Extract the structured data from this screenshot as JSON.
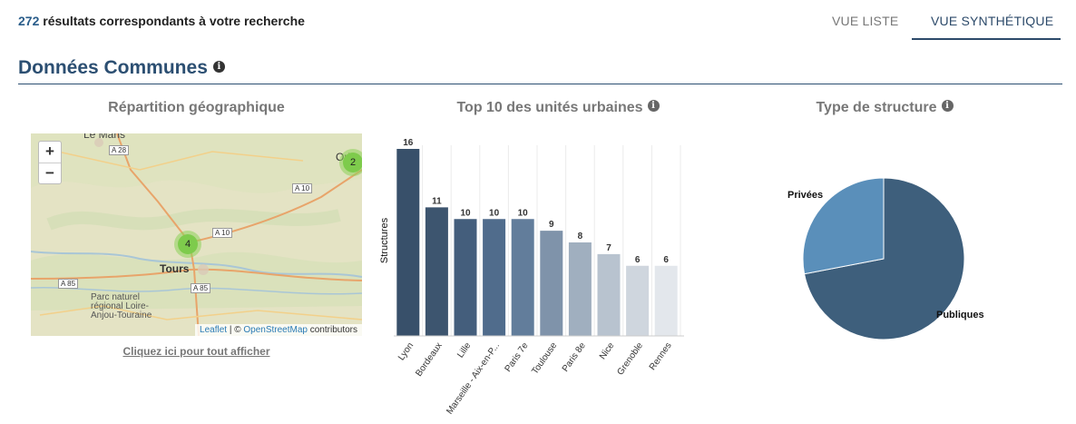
{
  "header": {
    "result_count": "272",
    "result_text": " résultats correspondants à votre recherche",
    "tabs": [
      {
        "label": "VUE LISTE",
        "active": false
      },
      {
        "label": "VUE SYNTHÉTIQUE",
        "active": true
      }
    ]
  },
  "section": {
    "title": "Données Communes"
  },
  "map_panel": {
    "title": "Répartition géographique",
    "zoom_in": "+",
    "zoom_out": "−",
    "labels": {
      "city_top": "Le Mans",
      "city_main": "Tours",
      "city_right": "Orl",
      "park": [
        "Parc naturel",
        "régional Loire-",
        "Anjou-Touraine"
      ],
      "roads": [
        "A 28",
        "A 10",
        "A 10",
        "A 85",
        "A 85"
      ]
    },
    "clusters": [
      {
        "count": "4"
      },
      {
        "count": "2"
      }
    ],
    "attribution": {
      "leaflet": "Leaflet",
      "sep": " | © ",
      "osm": "OpenStreetMap",
      "suffix": " contributors"
    },
    "show_all": "Cliquez ici pour tout afficher"
  },
  "chart_data": {
    "type": "bar",
    "title": "Top 10 des unités urbaines",
    "ylabel": "Structures",
    "categories": [
      "Lyon",
      "Bordeaux",
      "Lille",
      "Marseille - Aix-en-P...",
      "Paris 7e",
      "Toulouse",
      "Paris 8e",
      "Nice",
      "Grenoble",
      "Rennes"
    ],
    "values": [
      16,
      11,
      10,
      10,
      10,
      9,
      8,
      7,
      6,
      6
    ],
    "colors": [
      "#38506a",
      "#3d556f",
      "#445e7c",
      "#506c8c",
      "#627d9b",
      "#7f93aa",
      "#a0afbf",
      "#b8c3cf",
      "#cfd6de",
      "#e3e7ec"
    ],
    "ylim": [
      0,
      16
    ]
  },
  "pie_panel": {
    "title": "Type de structure",
    "slices": [
      {
        "label": "Publiques",
        "color": "#3e5f7c",
        "share": 0.72
      },
      {
        "label": "Privées",
        "color": "#5a8fba",
        "share": 0.28
      }
    ]
  }
}
